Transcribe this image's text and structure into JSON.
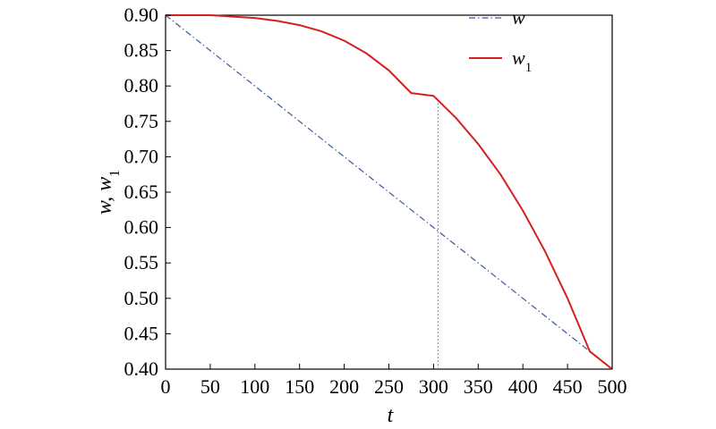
{
  "chart_data": {
    "type": "line",
    "xlabel": "t",
    "ylabel": "w, w",
    "ylabel_subscript": "1",
    "xlim": [
      0,
      500
    ],
    "ylim": [
      0.4,
      0.9
    ],
    "x_ticks": [
      0,
      50,
      100,
      150,
      200,
      250,
      300,
      350,
      400,
      450,
      500
    ],
    "x_tick_labels": [
      "0",
      "50",
      "100",
      "150",
      "200",
      "250",
      "300",
      "350",
      "400",
      "450",
      "500"
    ],
    "y_ticks": [
      0.4,
      0.45,
      0.5,
      0.55,
      0.6,
      0.65,
      0.7,
      0.75,
      0.8,
      0.85,
      0.9
    ],
    "y_tick_labels": [
      "0.40",
      "0.45",
      "0.50",
      "0.55",
      "0.60",
      "0.65",
      "0.70",
      "0.75",
      "0.80",
      "0.85",
      "0.90"
    ],
    "grid": false,
    "legend_placement": "top-right",
    "series": [
      {
        "name": "w",
        "name_subscript": "",
        "style": "dash-dot",
        "color": "#3a55a4",
        "x": [
          0,
          50,
          100,
          150,
          200,
          250,
          300,
          350,
          400,
          450,
          500
        ],
        "y": [
          0.9,
          0.85,
          0.8,
          0.75,
          0.7,
          0.65,
          0.6,
          0.55,
          0.5,
          0.45,
          0.4
        ]
      },
      {
        "name": "w",
        "name_subscript": "1",
        "style": "solid",
        "color": "#d42020",
        "x": [
          0,
          25,
          50,
          75,
          100,
          125,
          150,
          175,
          200,
          225,
          250,
          275,
          300,
          325,
          350,
          375,
          400,
          425,
          450,
          475,
          500
        ],
        "y": [
          0.9,
          0.9,
          0.9,
          0.898,
          0.896,
          0.892,
          0.886,
          0.877,
          0.864,
          0.846,
          0.822,
          0.79,
          0.786,
          0.755,
          0.718,
          0.675,
          0.624,
          0.566,
          0.5,
          0.425,
          0.4
        ]
      }
    ],
    "reference_line": {
      "style": "dotted",
      "color": "#777777",
      "x": 305,
      "y_from": 0.4,
      "y_to": 0.78
    }
  }
}
